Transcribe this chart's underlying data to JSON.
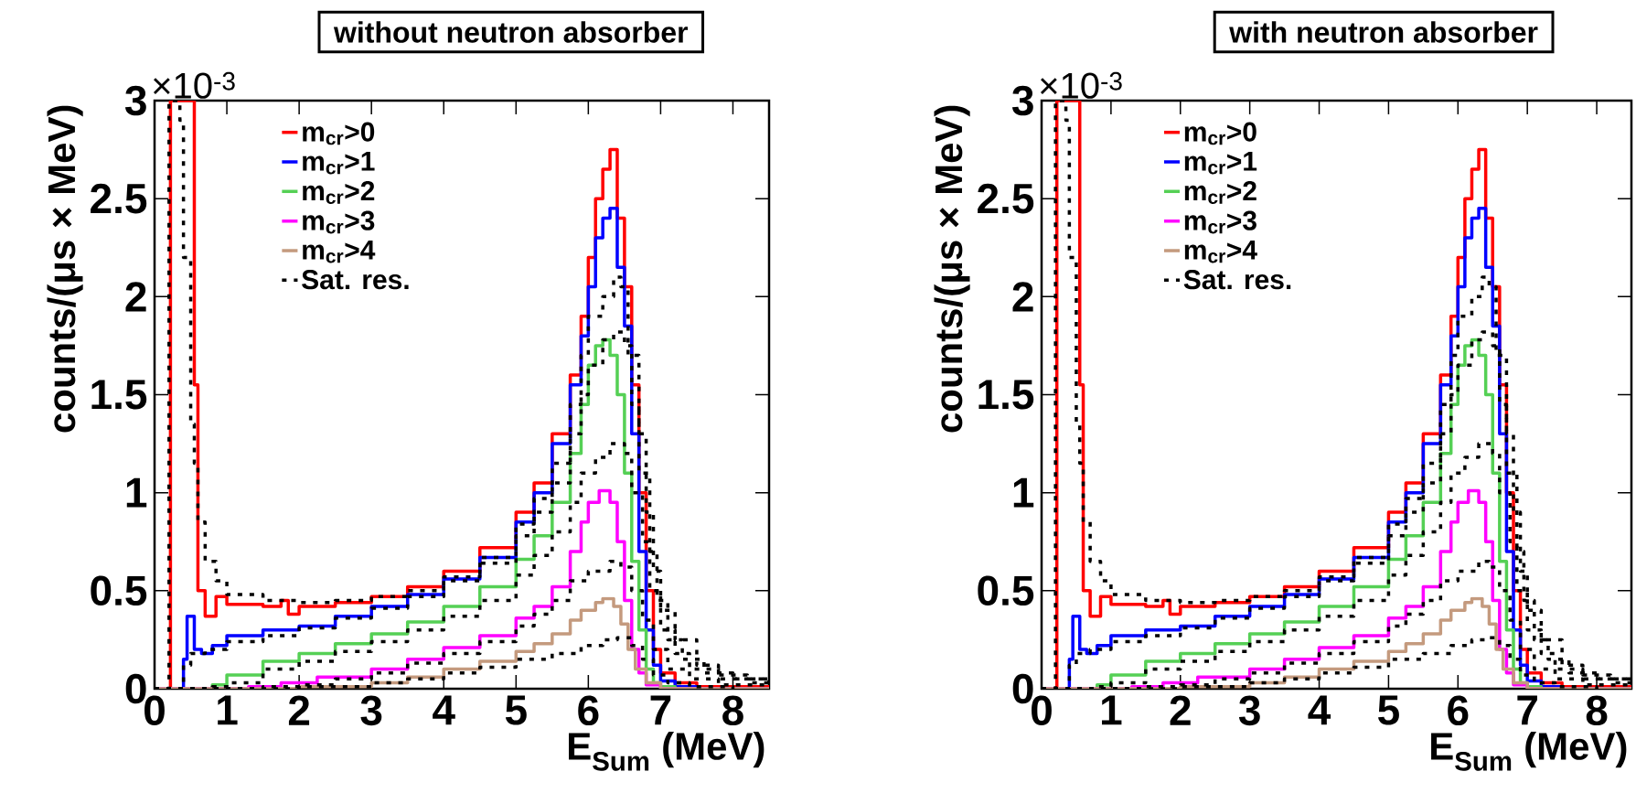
{
  "chart_data": [
    {
      "type": "step",
      "title": "without neutron absorber",
      "xlabel": "E$_{Sum}$ (MeV)",
      "ylabel": "counts/(μs × MeV)",
      "annotations": [
        "×10$^{-3}$"
      ],
      "xlim": [
        0,
        8.5
      ],
      "ylim": [
        0,
        3
      ],
      "xticks": [
        0,
        1,
        2,
        3,
        4,
        5,
        6,
        7,
        8
      ],
      "yticks": [
        0,
        0.5,
        1,
        1.5,
        2,
        2.5,
        3
      ],
      "legend": "top left",
      "series": [
        {
          "name": "m$_{cr}$>0",
          "color": "#ff0000",
          "x": [
            0,
            0.22,
            0.55,
            0.6,
            0.7,
            0.85,
            1.0,
            1.5,
            1.75,
            1.85,
            2.0,
            2.5,
            3.0,
            3.5,
            4.0,
            4.5,
            5.0,
            5.25,
            5.5,
            5.75,
            5.9,
            6.0,
            6.1,
            6.2,
            6.3,
            6.4,
            6.5,
            6.6,
            6.7,
            6.8,
            6.9,
            7.0,
            7.2,
            7.5,
            8.5
          ],
          "values": [
            0,
            3,
            1.55,
            0.5,
            0.37,
            0.47,
            0.43,
            0.42,
            0.45,
            0.38,
            0.42,
            0.44,
            0.47,
            0.52,
            0.6,
            0.72,
            0.9,
            1.05,
            1.3,
            1.6,
            1.9,
            2.2,
            2.5,
            2.65,
            2.75,
            2.4,
            2.05,
            1.55,
            1.0,
            0.5,
            0.2,
            0.08,
            0.03,
            0.01,
            0
          ]
        },
        {
          "name": "m$_{cr}$>1",
          "color": "#0000ff",
          "x": [
            0,
            0.4,
            0.45,
            0.55,
            0.65,
            0.8,
            1.0,
            1.5,
            2.0,
            2.5,
            3.0,
            3.5,
            4.0,
            4.5,
            5.0,
            5.25,
            5.5,
            5.75,
            5.9,
            6.0,
            6.1,
            6.2,
            6.3,
            6.4,
            6.5,
            6.6,
            6.7,
            6.8,
            6.9,
            7.0,
            7.2,
            7.5,
            8.5
          ],
          "values": [
            0,
            0.15,
            0.37,
            0.2,
            0.18,
            0.22,
            0.27,
            0.3,
            0.32,
            0.37,
            0.42,
            0.48,
            0.56,
            0.67,
            0.85,
            1.0,
            1.25,
            1.55,
            1.8,
            2.05,
            2.3,
            2.4,
            2.45,
            2.15,
            1.85,
            1.3,
            0.7,
            0.3,
            0.12,
            0.04,
            0.01,
            0,
            0
          ]
        },
        {
          "name": "m$_{cr}$>2",
          "color": "#55d055",
          "x": [
            0,
            0.8,
            1.0,
            1.5,
            2.0,
            2.5,
            3.0,
            3.5,
            4.0,
            4.5,
            5.0,
            5.25,
            5.5,
            5.75,
            5.9,
            6.0,
            6.1,
            6.2,
            6.3,
            6.4,
            6.5,
            6.6,
            6.7,
            6.8,
            6.9,
            7.0,
            7.2,
            8.5
          ],
          "values": [
            0,
            0.02,
            0.07,
            0.14,
            0.18,
            0.23,
            0.28,
            0.34,
            0.42,
            0.52,
            0.66,
            0.78,
            0.95,
            1.2,
            1.45,
            1.65,
            1.75,
            1.78,
            1.7,
            1.5,
            1.1,
            0.65,
            0.3,
            0.1,
            0.03,
            0.01,
            0,
            0
          ]
        },
        {
          "name": "m$_{cr}$>3",
          "color": "#ff00ff",
          "x": [
            0,
            1.3,
            1.75,
            2.25,
            3.0,
            3.5,
            4.0,
            4.5,
            5.0,
            5.25,
            5.5,
            5.75,
            5.9,
            6.0,
            6.15,
            6.3,
            6.4,
            6.5,
            6.6,
            6.7,
            6.8,
            7.0,
            8.5
          ],
          "values": [
            0,
            0.01,
            0.03,
            0.06,
            0.1,
            0.15,
            0.21,
            0.27,
            0.36,
            0.42,
            0.52,
            0.7,
            0.85,
            0.95,
            1.01,
            0.95,
            0.75,
            0.45,
            0.2,
            0.08,
            0.02,
            0,
            0
          ]
        },
        {
          "name": "m$_{cr}$>4",
          "color": "#c49a7e",
          "x": [
            0,
            2.0,
            3.0,
            3.5,
            4.0,
            4.5,
            5.0,
            5.25,
            5.5,
            5.75,
            5.9,
            6.1,
            6.2,
            6.35,
            6.45,
            6.55,
            6.65,
            6.8,
            7.0,
            8.5
          ],
          "values": [
            0,
            0.01,
            0.03,
            0.06,
            0.1,
            0.14,
            0.19,
            0.23,
            0.28,
            0.35,
            0.4,
            0.44,
            0.46,
            0.42,
            0.33,
            0.2,
            0.1,
            0.03,
            0,
            0
          ]
        },
        {
          "name": "Sat. res.",
          "color": "#000000",
          "line_style": "dotted",
          "x": [
            0,
            0.2,
            0.35,
            0.4,
            0.5,
            0.55,
            0.6,
            0.7,
            0.85,
            1.0,
            1.5,
            2.0,
            2.5,
            3.0,
            3.5,
            4.0,
            4.5,
            5.0,
            5.25,
            5.5,
            5.75,
            5.9,
            6.0,
            6.2,
            6.35,
            6.45,
            6.55,
            6.7,
            6.8,
            6.9,
            7.0,
            7.2,
            7.5,
            7.8,
            8.2,
            8.5
          ],
          "values": [
            0,
            3,
            2.9,
            2.2,
            1.35,
            1.15,
            0.85,
            0.65,
            0.55,
            0.48,
            0.45,
            0.44,
            0.45,
            0.47,
            0.5,
            0.57,
            0.67,
            0.84,
            0.97,
            1.15,
            1.45,
            1.7,
            1.9,
            2.0,
            2.1,
            2.05,
            1.7,
            1.3,
            0.9,
            0.6,
            0.4,
            0.25,
            0.12,
            0.07,
            0.05,
            0.04
          ]
        },
        {
          "color": "#000000",
          "line_style": "dotted",
          "x": [
            0,
            0.4,
            0.5,
            0.7,
            1.0,
            1.5,
            2.0,
            2.5,
            3.0,
            3.5,
            4.0,
            4.5,
            5.0,
            5.25,
            5.5,
            5.75,
            5.9,
            6.0,
            6.2,
            6.35,
            6.5,
            6.6,
            6.7,
            6.85,
            6.95,
            7.1,
            7.3,
            7.6,
            8.0,
            8.5
          ],
          "values": [
            0,
            0.12,
            0.18,
            0.2,
            0.24,
            0.27,
            0.31,
            0.36,
            0.41,
            0.47,
            0.55,
            0.64,
            0.78,
            0.9,
            1.05,
            1.3,
            1.5,
            1.65,
            1.78,
            1.82,
            1.75,
            1.45,
            1.1,
            0.7,
            0.45,
            0.25,
            0.15,
            0.08,
            0.05,
            0.03
          ]
        },
        {
          "color": "#000000",
          "line_style": "dotted",
          "x": [
            0,
            0.8,
            1.0,
            1.5,
            2.0,
            2.5,
            3.0,
            3.5,
            4.0,
            4.5,
            5.0,
            5.25,
            5.5,
            5.75,
            5.9,
            6.1,
            6.3,
            6.5,
            6.6,
            6.75,
            6.85,
            7.0,
            7.2,
            7.4,
            7.8,
            8.2,
            8.5
          ],
          "values": [
            0,
            0.01,
            0.03,
            0.1,
            0.14,
            0.19,
            0.24,
            0.3,
            0.37,
            0.45,
            0.58,
            0.68,
            0.8,
            0.95,
            1.1,
            1.18,
            1.25,
            1.2,
            1.0,
            0.75,
            0.5,
            0.3,
            0.18,
            0.1,
            0.05,
            0.03,
            0.02
          ]
        },
        {
          "color": "#000000",
          "line_style": "dotted",
          "x": [
            0,
            1.5,
            2.0,
            2.5,
            3.0,
            3.5,
            4.0,
            4.5,
            5.0,
            5.25,
            5.5,
            5.75,
            6.0,
            6.3,
            6.45,
            6.6,
            6.75,
            6.9,
            7.1,
            7.4,
            7.8,
            8.5
          ],
          "values": [
            0,
            0.01,
            0.02,
            0.05,
            0.08,
            0.13,
            0.18,
            0.24,
            0.32,
            0.38,
            0.45,
            0.55,
            0.6,
            0.65,
            0.62,
            0.5,
            0.35,
            0.2,
            0.1,
            0.05,
            0.02,
            0.01
          ]
        },
        {
          "color": "#000000",
          "line_style": "dotted",
          "x": [
            0,
            2.0,
            2.5,
            3.0,
            3.5,
            4.0,
            4.5,
            5.0,
            5.5,
            5.9,
            6.2,
            6.4,
            6.6,
            6.75,
            6.9,
            7.1,
            7.4,
            8.0
          ],
          "values": [
            0,
            0.01,
            0.01,
            0.03,
            0.05,
            0.08,
            0.11,
            0.15,
            0.18,
            0.22,
            0.25,
            0.26,
            0.22,
            0.15,
            0.07,
            0.03,
            0.01,
            0
          ]
        }
      ]
    },
    {
      "type": "step",
      "title": "with neutron absorber",
      "xlabel": "E$_{Sum}$ (MeV)",
      "ylabel": "counts/(μs × MeV)",
      "annotations": [
        "×10$^{-3}$"
      ],
      "xlim": [
        0,
        8.5
      ],
      "ylim": [
        0,
        3
      ],
      "xticks": [
        0,
        1,
        2,
        3,
        4,
        5,
        6,
        7,
        8
      ],
      "yticks": [
        0,
        0.5,
        1,
        1.5,
        2,
        2.5,
        3
      ],
      "legend": "top left",
      "series": [
        {
          "name": "m$_{cr}$>0",
          "color": "#ff0000",
          "x": [
            0,
            0.22,
            0.55,
            0.6,
            0.7,
            0.85,
            1.0,
            1.5,
            1.75,
            1.85,
            2.0,
            2.5,
            3.0,
            3.5,
            4.0,
            4.5,
            5.0,
            5.25,
            5.5,
            5.75,
            5.9,
            6.0,
            6.1,
            6.2,
            6.3,
            6.4,
            6.5,
            6.6,
            6.7,
            6.8,
            6.9,
            7.0,
            7.2,
            7.5,
            8.5
          ],
          "values": [
            0,
            3,
            1.55,
            0.5,
            0.37,
            0.47,
            0.43,
            0.42,
            0.45,
            0.38,
            0.42,
            0.44,
            0.47,
            0.52,
            0.6,
            0.72,
            0.9,
            1.05,
            1.3,
            1.6,
            1.9,
            2.2,
            2.5,
            2.65,
            2.75,
            2.4,
            2.05,
            1.55,
            1.0,
            0.5,
            0.2,
            0.08,
            0.03,
            0.01,
            0
          ]
        },
        {
          "name": "m$_{cr}$>1",
          "color": "#0000ff",
          "x": [
            0,
            0.4,
            0.45,
            0.55,
            0.65,
            0.8,
            1.0,
            1.5,
            2.0,
            2.5,
            3.0,
            3.5,
            4.0,
            4.5,
            5.0,
            5.25,
            5.5,
            5.75,
            5.9,
            6.0,
            6.1,
            6.2,
            6.3,
            6.4,
            6.5,
            6.6,
            6.7,
            6.8,
            6.9,
            7.0,
            7.2,
            7.5,
            8.5
          ],
          "values": [
            0,
            0.15,
            0.37,
            0.2,
            0.18,
            0.22,
            0.27,
            0.3,
            0.32,
            0.37,
            0.42,
            0.48,
            0.56,
            0.67,
            0.85,
            1.0,
            1.25,
            1.55,
            1.8,
            2.05,
            2.3,
            2.4,
            2.45,
            2.15,
            1.85,
            1.3,
            0.7,
            0.3,
            0.12,
            0.04,
            0.01,
            0,
            0
          ]
        },
        {
          "name": "m$_{cr}$>2",
          "color": "#55d055",
          "x": [
            0,
            0.8,
            1.0,
            1.5,
            2.0,
            2.5,
            3.0,
            3.5,
            4.0,
            4.5,
            5.0,
            5.25,
            5.5,
            5.75,
            5.9,
            6.0,
            6.1,
            6.2,
            6.3,
            6.4,
            6.5,
            6.6,
            6.7,
            6.8,
            6.9,
            7.0,
            7.2,
            8.5
          ],
          "values": [
            0,
            0.02,
            0.07,
            0.14,
            0.18,
            0.23,
            0.28,
            0.34,
            0.42,
            0.52,
            0.66,
            0.78,
            0.95,
            1.2,
            1.45,
            1.65,
            1.75,
            1.78,
            1.7,
            1.5,
            1.1,
            0.65,
            0.3,
            0.1,
            0.03,
            0.01,
            0,
            0
          ]
        },
        {
          "name": "m$_{cr}$>3",
          "color": "#ff00ff",
          "x": [
            0,
            1.3,
            1.75,
            2.25,
            3.0,
            3.5,
            4.0,
            4.5,
            5.0,
            5.25,
            5.5,
            5.75,
            5.9,
            6.0,
            6.15,
            6.3,
            6.4,
            6.5,
            6.6,
            6.7,
            6.8,
            7.0,
            8.5
          ],
          "values": [
            0,
            0.01,
            0.03,
            0.06,
            0.1,
            0.15,
            0.21,
            0.27,
            0.36,
            0.42,
            0.52,
            0.7,
            0.85,
            0.95,
            1.01,
            0.95,
            0.75,
            0.45,
            0.2,
            0.08,
            0.02,
            0,
            0
          ]
        },
        {
          "name": "m$_{cr}$>4",
          "color": "#c49a7e",
          "x": [
            0,
            2.0,
            3.0,
            3.5,
            4.0,
            4.5,
            5.0,
            5.25,
            5.5,
            5.75,
            5.9,
            6.1,
            6.2,
            6.35,
            6.45,
            6.55,
            6.65,
            6.8,
            7.0,
            8.5
          ],
          "values": [
            0,
            0.01,
            0.03,
            0.06,
            0.1,
            0.14,
            0.19,
            0.23,
            0.28,
            0.35,
            0.4,
            0.44,
            0.46,
            0.42,
            0.33,
            0.2,
            0.1,
            0.03,
            0,
            0
          ]
        },
        {
          "name": "Sat. res.",
          "color": "#000000",
          "line_style": "dotted",
          "x": [
            0,
            0.2,
            0.35,
            0.4,
            0.5,
            0.55,
            0.6,
            0.7,
            0.85,
            1.0,
            1.5,
            2.0,
            2.5,
            3.0,
            3.5,
            4.0,
            4.5,
            5.0,
            5.25,
            5.5,
            5.75,
            5.9,
            6.0,
            6.2,
            6.35,
            6.45,
            6.55,
            6.7,
            6.8,
            6.9,
            7.0,
            7.2,
            7.5,
            7.8,
            8.2,
            8.5
          ],
          "values": [
            0,
            3,
            2.9,
            2.2,
            1.35,
            1.15,
            0.85,
            0.65,
            0.55,
            0.48,
            0.45,
            0.44,
            0.45,
            0.47,
            0.5,
            0.57,
            0.67,
            0.84,
            0.97,
            1.15,
            1.45,
            1.7,
            1.9,
            2.0,
            2.1,
            2.05,
            1.7,
            1.3,
            0.9,
            0.6,
            0.4,
            0.25,
            0.12,
            0.07,
            0.05,
            0.04
          ]
        },
        {
          "color": "#000000",
          "line_style": "dotted",
          "x": [
            0,
            0.4,
            0.5,
            0.7,
            1.0,
            1.5,
            2.0,
            2.5,
            3.0,
            3.5,
            4.0,
            4.5,
            5.0,
            5.25,
            5.5,
            5.75,
            5.9,
            6.0,
            6.2,
            6.35,
            6.5,
            6.6,
            6.7,
            6.85,
            6.95,
            7.1,
            7.3,
            7.6,
            8.0,
            8.5
          ],
          "values": [
            0,
            0.12,
            0.18,
            0.2,
            0.24,
            0.27,
            0.31,
            0.36,
            0.41,
            0.47,
            0.55,
            0.64,
            0.78,
            0.9,
            1.05,
            1.3,
            1.5,
            1.65,
            1.78,
            1.82,
            1.75,
            1.45,
            1.1,
            0.7,
            0.45,
            0.25,
            0.15,
            0.08,
            0.05,
            0.03
          ]
        },
        {
          "color": "#000000",
          "line_style": "dotted",
          "x": [
            0,
            0.8,
            1.0,
            1.5,
            2.0,
            2.5,
            3.0,
            3.5,
            4.0,
            4.5,
            5.0,
            5.25,
            5.5,
            5.75,
            5.9,
            6.1,
            6.3,
            6.5,
            6.6,
            6.75,
            6.85,
            7.0,
            7.2,
            7.4,
            7.8,
            8.2,
            8.5
          ],
          "values": [
            0,
            0.01,
            0.03,
            0.1,
            0.14,
            0.19,
            0.24,
            0.3,
            0.37,
            0.45,
            0.58,
            0.68,
            0.8,
            0.95,
            1.1,
            1.18,
            1.25,
            1.2,
            1.0,
            0.75,
            0.5,
            0.3,
            0.18,
            0.1,
            0.05,
            0.03,
            0.02
          ]
        },
        {
          "color": "#000000",
          "line_style": "dotted",
          "x": [
            0,
            1.5,
            2.0,
            2.5,
            3.0,
            3.5,
            4.0,
            4.5,
            5.0,
            5.25,
            5.5,
            5.75,
            6.0,
            6.3,
            6.45,
            6.6,
            6.75,
            6.9,
            7.1,
            7.4,
            7.8,
            8.5
          ],
          "values": [
            0,
            0.01,
            0.02,
            0.05,
            0.08,
            0.13,
            0.18,
            0.24,
            0.32,
            0.38,
            0.45,
            0.55,
            0.6,
            0.65,
            0.62,
            0.5,
            0.35,
            0.2,
            0.1,
            0.05,
            0.02,
            0.01
          ]
        },
        {
          "color": "#000000",
          "line_style": "dotted",
          "x": [
            0,
            2.0,
            2.5,
            3.0,
            3.5,
            4.0,
            4.5,
            5.0,
            5.5,
            5.9,
            6.2,
            6.4,
            6.6,
            6.75,
            6.9,
            7.1,
            7.4,
            8.0
          ],
          "values": [
            0,
            0.01,
            0.01,
            0.03,
            0.05,
            0.08,
            0.11,
            0.15,
            0.18,
            0.22,
            0.25,
            0.26,
            0.22,
            0.15,
            0.07,
            0.03,
            0.01,
            0
          ]
        }
      ]
    }
  ]
}
